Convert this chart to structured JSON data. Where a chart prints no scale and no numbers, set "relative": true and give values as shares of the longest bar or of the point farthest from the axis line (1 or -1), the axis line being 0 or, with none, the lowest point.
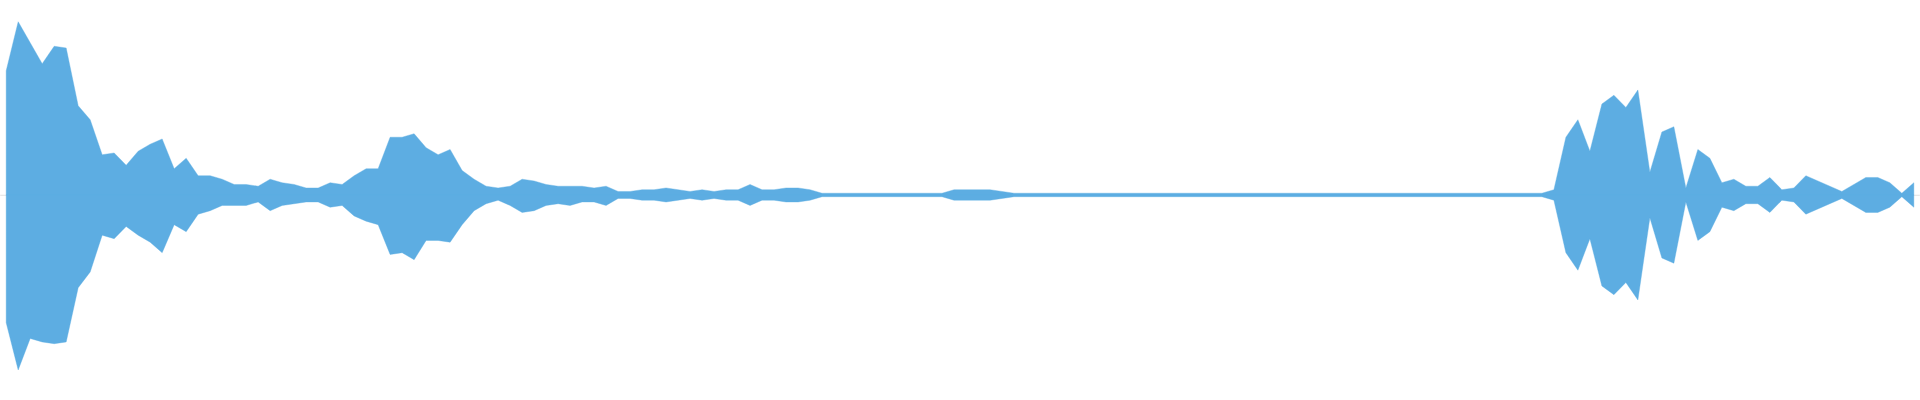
{
  "chart_data": {
    "type": "area",
    "relative": true,
    "categories": [
      null,
      null,
      null,
      null,
      null,
      null,
      null,
      null,
      null,
      null,
      null,
      null,
      null,
      null,
      null,
      null,
      null,
      null,
      null,
      null,
      null,
      null,
      null,
      null,
      null,
      null,
      null,
      null,
      null,
      null,
      null,
      null,
      null,
      null,
      null,
      null,
      null,
      null,
      null,
      null,
      null,
      null,
      null,
      null,
      null,
      null,
      null,
      null,
      null,
      null,
      null,
      null,
      null,
      null,
      null,
      null,
      null,
      null,
      null,
      null,
      null,
      null,
      null,
      null,
      null,
      null,
      null,
      null,
      null,
      null,
      null,
      null,
      null,
      null,
      null,
      null,
      null,
      null,
      null,
      null,
      null,
      null,
      null,
      null,
      null,
      null,
      null,
      null,
      null,
      null,
      null,
      null,
      null,
      null,
      null,
      null,
      null,
      null,
      null,
      null,
      null,
      null,
      null,
      null,
      null,
      null,
      null,
      null,
      null,
      null,
      null,
      null,
      null,
      null,
      null,
      null,
      null,
      null,
      null,
      null,
      null,
      null,
      null,
      null,
      null,
      null,
      null,
      null,
      null,
      null,
      null,
      null,
      null,
      null,
      null,
      null,
      null,
      null,
      null,
      null,
      null,
      null,
      null,
      null,
      null,
      null,
      null,
      null,
      null,
      null,
      null,
      null,
      null,
      null,
      null,
      null,
      null,
      null,
      null,
      null
    ],
    "series": [
      {
        "color": "#5dade2",
        "values": [
          0.71,
          0.99,
          0.87,
          0.75,
          0.85,
          0.84,
          0.51,
          0.43,
          0.23,
          0.24,
          0.17,
          0.25,
          0.29,
          0.32,
          0.15,
          0.21,
          0.11,
          0.11,
          0.09,
          0.06,
          0.06,
          0.05,
          0.09,
          0.07,
          0.06,
          0.04,
          0.04,
          0.07,
          0.06,
          0.11,
          0.15,
          0.15,
          0.33,
          0.33,
          0.35,
          0.27,
          0.23,
          0.26,
          0.14,
          0.09,
          0.05,
          0.04,
          0.05,
          0.09,
          0.08,
          0.06,
          0.05,
          0.05,
          0.05,
          0.04,
          0.05,
          0.02,
          0.02,
          0.03,
          0.03,
          0.04,
          0.03,
          0.02,
          0.03,
          0.02,
          0.03,
          0.03,
          0.06,
          0.03,
          0.03,
          0.04,
          0.04,
          0.03,
          0.01,
          0.01,
          0.01,
          0.01,
          0.01,
          0.01,
          0.01,
          0.01,
          0.01,
          0.01,
          0.01,
          0.03,
          0.03,
          0.03,
          0.03,
          0.02,
          0.01,
          0.01,
          0.01,
          0.01,
          0.01,
          0.01,
          0.01,
          0.01,
          0.01,
          0.01,
          0.01,
          0.01,
          0.01,
          0.01,
          0.01,
          0.01,
          0.01,
          0.01,
          0.01,
          0.01,
          0.01,
          0.01,
          0.01,
          0.01,
          0.01,
          0.01,
          0.01,
          0.01,
          0.01,
          0.01,
          0.01,
          0.01,
          0.01,
          0.01,
          0.01,
          0.01,
          0.01,
          0.01,
          0.01,
          0.01,
          0.01,
          0.01,
          0.01,
          0.01,
          0.01,
          0.03,
          0.33,
          0.43,
          0.25,
          0.52,
          0.57,
          0.5,
          0.6,
          0.13,
          0.36,
          0.39,
          0.04,
          0.26,
          0.21,
          0.07,
          0.09,
          0.05,
          0.05,
          0.1,
          0.03,
          0.04,
          0.11,
          0.08,
          0.05,
          0.02,
          0.06,
          0.1,
          0.1,
          0.07,
          0.01,
          0.07
        ]
      },
      {
        "color": "#5dade2",
        "values": [
          -0.73,
          -1,
          -0.82,
          -0.84,
          -0.85,
          -0.84,
          -0.53,
          -0.44,
          -0.23,
          -0.25,
          -0.18,
          -0.23,
          -0.27,
          -0.33,
          -0.17,
          -0.21,
          -0.11,
          -0.09,
          -0.06,
          -0.06,
          -0.06,
          -0.04,
          -0.09,
          -0.06,
          -0.05,
          -0.04,
          -0.04,
          -0.07,
          -0.06,
          -0.12,
          -0.15,
          -0.17,
          -0.34,
          -0.33,
          -0.37,
          -0.26,
          -0.26,
          -0.27,
          -0.17,
          -0.09,
          -0.05,
          -0.03,
          -0.06,
          -0.1,
          -0.09,
          -0.06,
          -0.05,
          -0.06,
          -0.04,
          -0.04,
          -0.06,
          -0.02,
          -0.02,
          -0.03,
          -0.03,
          -0.04,
          -0.03,
          -0.02,
          -0.03,
          -0.02,
          -0.03,
          -0.03,
          -0.06,
          -0.03,
          -0.03,
          -0.04,
          -0.04,
          -0.03,
          -0.01,
          -0.01,
          -0.01,
          -0.01,
          -0.01,
          -0.01,
          -0.01,
          -0.01,
          -0.01,
          -0.01,
          -0.01,
          -0.03,
          -0.03,
          -0.03,
          -0.03,
          -0.02,
          -0.01,
          -0.01,
          -0.01,
          -0.01,
          -0.01,
          -0.01,
          -0.01,
          -0.01,
          -0.01,
          -0.01,
          -0.01,
          -0.01,
          -0.01,
          -0.01,
          -0.01,
          -0.01,
          -0.01,
          -0.01,
          -0.01,
          -0.01,
          -0.01,
          -0.01,
          -0.01,
          -0.01,
          -0.01,
          -0.01,
          -0.01,
          -0.01,
          -0.01,
          -0.01,
          -0.01,
          -0.01,
          -0.01,
          -0.01,
          -0.01,
          -0.01,
          -0.01,
          -0.01,
          -0.01,
          -0.01,
          -0.01,
          -0.01,
          -0.01,
          -0.01,
          -0.01,
          -0.03,
          -0.33,
          -0.43,
          -0.25,
          -0.52,
          -0.57,
          -0.5,
          -0.6,
          -0.13,
          -0.36,
          -0.39,
          -0.04,
          -0.26,
          -0.21,
          -0.07,
          -0.09,
          -0.05,
          -0.05,
          -0.1,
          -0.03,
          -0.04,
          -0.11,
          -0.08,
          -0.05,
          -0.02,
          -0.06,
          -0.1,
          -0.1,
          -0.07,
          -0.01,
          -0.07
        ]
      }
    ]
  }
}
